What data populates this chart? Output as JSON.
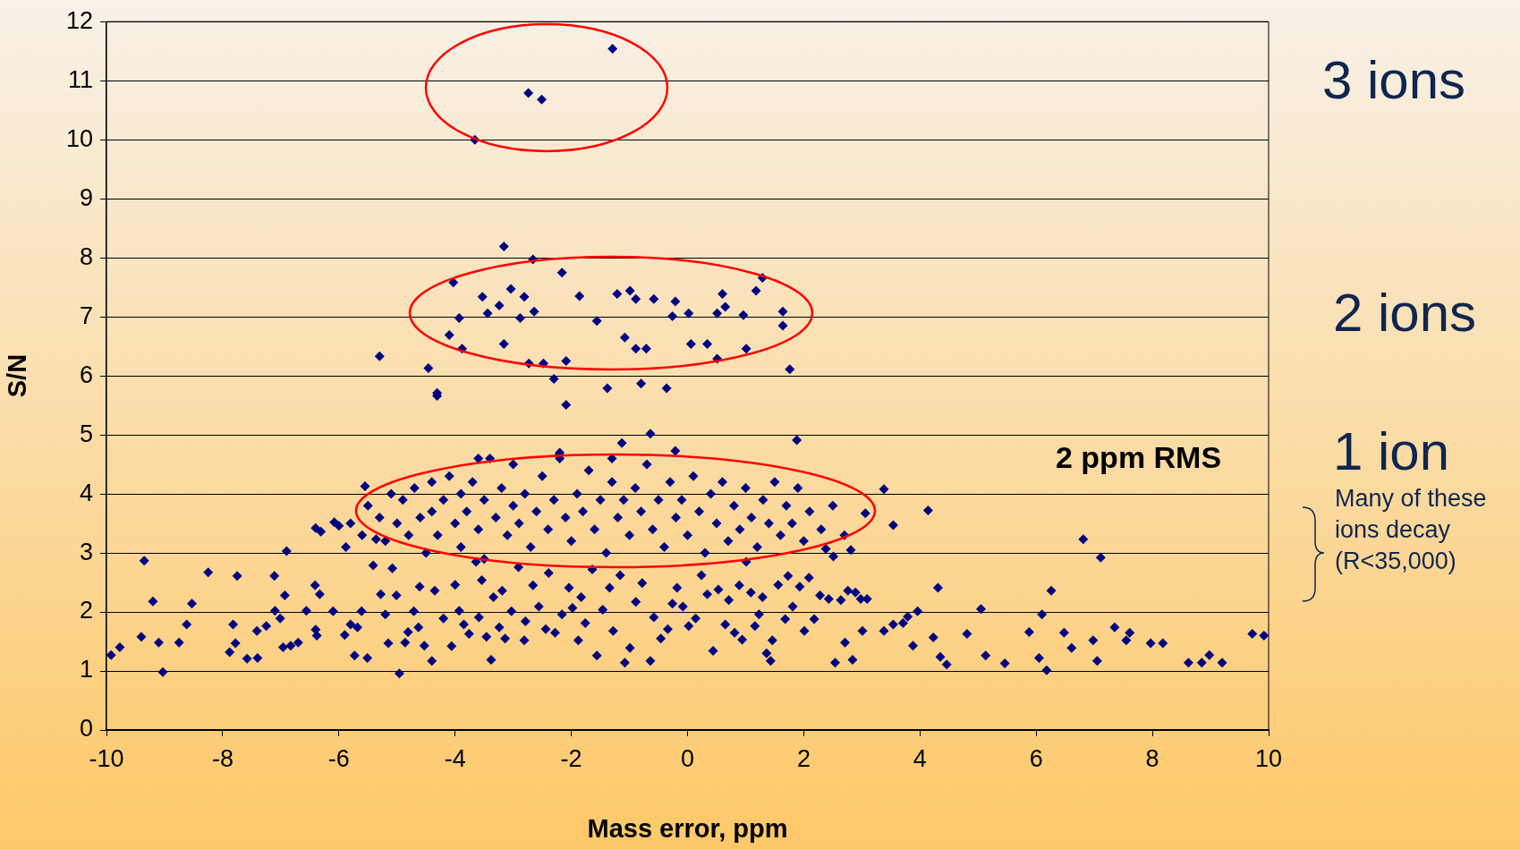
{
  "chart_data": {
    "type": "scatter",
    "xlabel": "Mass error, ppm",
    "ylabel": "S/N",
    "xlim": [
      -10,
      10
    ],
    "xticks": [
      -10,
      -8,
      -6,
      -4,
      -2,
      0,
      2,
      4,
      6,
      8,
      10
    ],
    "ylim": [
      0,
      12
    ],
    "yticks": [
      0,
      1,
      2,
      3,
      4,
      5,
      6,
      7,
      8,
      9,
      10,
      11,
      12
    ],
    "grid": "y",
    "marker": "diamond",
    "legend": false,
    "annotations": [
      "3 ions",
      "2 ions",
      "1 ion",
      "Many of these ions decay (R<35,000)",
      "2 ppm RMS"
    ],
    "series": [
      {
        "color": "#000080",
        "x": [
          -3.66,
          -2.74,
          -2.51,
          -1.29,
          -3.16,
          -2.66,
          -2.16,
          1.29,
          -4.03,
          -3.53,
          -3.04,
          -2.81,
          -2.64,
          -3.93,
          -3.44,
          -3.24,
          -2.88,
          -1.86,
          -1.56,
          -1.21,
          -0.99,
          -0.89,
          -0.58,
          -0.21,
          0.02,
          -0.26,
          0.51,
          0.6,
          0.65,
          0.96,
          1.18,
          1.64,
          1.64,
          -4.1,
          -3.88,
          -3.16,
          -2.73,
          -2.48,
          -2.09,
          -1.08,
          -0.89,
          -0.71,
          0.06,
          0.34,
          0.51,
          1.01,
          -5.3,
          -4.46,
          1.76,
          -2.3,
          -4.31,
          -4.31,
          -1.38,
          -0.8,
          -0.36,
          -2.09,
          -1.13,
          -0.64,
          1.88,
          -0.21,
          -2.21,
          -9.92,
          -9.77,
          -9.35,
          -9.4,
          -9.2,
          -9.1,
          -9.03,
          -8.75,
          -8.62,
          -8.53,
          -8.25,
          -7.88,
          -7.82,
          -7.75,
          -7.78,
          -7.58,
          -7.4,
          -7.41,
          -7.25,
          -7.11,
          -7.1,
          -7.01,
          -6.96,
          -6.93,
          -6.9,
          -6.83,
          -6.7,
          -6.56,
          -6.41,
          -6.4,
          -6.31,
          -6.4,
          -6.38,
          -6.33,
          -6.1,
          -6.08,
          -6.0,
          -5.88,
          -5.9,
          -5.8,
          -5.73,
          -5.68,
          -5.61,
          -5.55,
          -5.51,
          -5.41,
          -5.36,
          -5.28,
          -5.2,
          -5.15,
          -5.08,
          -5.01,
          -4.96,
          -4.86,
          -4.81,
          -4.71,
          -4.63,
          -4.61,
          -4.53,
          -4.4,
          -4.35,
          -4.2,
          -4.06,
          -4.0,
          -3.93,
          -3.85,
          -3.76,
          -3.64,
          -3.59,
          -3.54,
          -3.46,
          -3.38,
          -3.34,
          -3.24,
          -3.19,
          -3.14,
          -3.03,
          -2.91,
          -2.81,
          -2.79,
          -2.66,
          -2.56,
          -2.44,
          -2.39,
          -2.28,
          -2.16,
          -2.04,
          -1.98,
          -1.88,
          -1.83,
          -1.76,
          -1.64,
          -1.56,
          -1.46,
          -1.34,
          -1.28,
          -1.16,
          -1.08,
          -0.99,
          -0.89,
          -0.78,
          -0.64,
          -0.58,
          -0.46,
          -0.34,
          -0.26,
          -0.18,
          -0.08,
          0.02,
          0.14,
          0.24,
          0.34,
          0.44,
          0.53,
          0.65,
          0.71,
          0.81,
          0.89,
          0.94,
          1.01,
          1.09,
          1.16,
          1.23,
          1.29,
          1.36,
          1.43,
          1.46,
          1.56,
          1.68,
          1.73,
          1.81,
          1.93,
          2.01,
          2.09,
          2.18,
          2.28,
          2.38,
          2.43,
          2.51,
          2.54,
          2.64,
          2.71,
          2.76,
          2.81,
          2.84,
          2.89,
          2.98,
          3.01,
          3.06,
          3.09,
          3.38,
          3.38,
          3.54,
          3.54,
          3.71,
          3.79,
          3.88,
          3.96,
          4.14,
          4.23,
          4.31,
          4.35,
          4.46,
          4.81,
          5.05,
          5.13,
          5.46,
          5.88,
          6.1,
          6.05,
          6.18,
          6.26,
          6.48,
          6.61,
          6.81,
          6.98,
          7.05,
          7.11,
          7.35,
          7.55,
          7.61,
          7.97,
          8.18,
          8.62,
          8.85,
          8.98,
          9.2,
          9.72,
          9.92,
          -5.8,
          -5.6,
          -5.5,
          -5.3,
          -5.2,
          -5.1,
          -5.0,
          -4.9,
          -4.8,
          -4.7,
          -4.6,
          -4.5,
          -4.4,
          -4.4,
          -4.3,
          -4.2,
          -4.1,
          -4.0,
          -3.9,
          -3.9,
          -3.8,
          -3.7,
          -3.6,
          -3.5,
          -3.5,
          -3.4,
          -3.3,
          -3.2,
          -3.1,
          -3.0,
          -3.0,
          -2.9,
          -2.8,
          -2.7,
          -2.6,
          -2.5,
          -2.4,
          -2.3,
          -2.2,
          -2.1,
          -2.0,
          -1.9,
          -1.8,
          -1.7,
          -1.6,
          -1.5,
          -1.4,
          -1.3,
          -1.2,
          -1.1,
          -1.0,
          -0.9,
          -0.8,
          -0.7,
          -0.6,
          -0.5,
          -0.4,
          -0.3,
          -0.2,
          -0.1,
          0.0,
          0.1,
          0.2,
          0.3,
          0.4,
          0.5,
          0.6,
          0.7,
          0.8,
          0.9,
          1.0,
          1.1,
          1.2,
          1.3,
          1.4,
          1.5,
          1.6,
          1.7,
          1.8,
          1.9,
          2.0,
          2.1,
          2.3,
          2.5,
          2.7,
          -3.6,
          -2.2,
          -1.3
        ],
        "values": [
          10.0,
          10.79,
          10.68,
          11.54,
          8.19,
          7.97,
          7.75,
          7.66,
          7.58,
          7.34,
          7.47,
          7.34,
          7.09,
          6.98,
          7.06,
          7.19,
          6.98,
          7.35,
          6.93,
          7.39,
          7.44,
          7.3,
          7.3,
          7.26,
          7.06,
          7.01,
          7.06,
          7.39,
          7.17,
          7.03,
          7.44,
          7.09,
          6.85,
          6.69,
          6.46,
          6.54,
          6.21,
          6.21,
          6.25,
          6.65,
          6.46,
          6.46,
          6.54,
          6.54,
          6.29,
          6.46,
          6.33,
          6.13,
          6.11,
          5.95,
          5.71,
          5.66,
          5.79,
          5.87,
          5.79,
          5.51,
          4.86,
          5.02,
          4.91,
          4.73,
          4.66,
          1.27,
          1.4,
          2.87,
          1.58,
          2.18,
          1.48,
          0.98,
          1.48,
          1.79,
          2.14,
          2.67,
          1.32,
          1.79,
          2.61,
          1.47,
          1.21,
          1.22,
          1.68,
          1.76,
          2.61,
          2.02,
          1.89,
          1.4,
          2.28,
          3.03,
          1.43,
          1.48,
          2.02,
          2.45,
          3.42,
          3.36,
          1.7,
          1.6,
          2.3,
          2.01,
          3.52,
          3.46,
          3.1,
          1.61,
          1.79,
          1.26,
          1.74,
          2.01,
          4.13,
          1.22,
          2.79,
          3.23,
          2.3,
          1.96,
          1.47,
          2.74,
          2.28,
          0.96,
          1.48,
          1.66,
          2.01,
          1.74,
          2.43,
          1.43,
          1.17,
          2.36,
          1.89,
          1.42,
          2.46,
          2.02,
          1.79,
          1.63,
          2.85,
          1.91,
          2.54,
          1.58,
          1.19,
          2.25,
          1.74,
          2.36,
          1.55,
          2.01,
          2.76,
          1.52,
          1.84,
          2.45,
          2.09,
          1.71,
          2.66,
          1.65,
          1.96,
          2.41,
          2.07,
          1.52,
          2.25,
          1.81,
          2.72,
          1.26,
          2.04,
          2.41,
          1.68,
          2.62,
          1.14,
          1.39,
          2.17,
          2.49,
          1.17,
          1.91,
          1.55,
          1.71,
          2.14,
          2.41,
          2.09,
          1.76,
          1.89,
          2.62,
          2.3,
          1.34,
          2.38,
          1.79,
          2.2,
          1.65,
          2.45,
          1.53,
          2.85,
          2.33,
          1.76,
          1.96,
          2.25,
          1.3,
          1.17,
          1.52,
          2.46,
          1.88,
          2.61,
          2.09,
          2.43,
          1.68,
          2.58,
          1.88,
          2.28,
          3.07,
          2.22,
          2.94,
          1.14,
          2.2,
          1.48,
          2.36,
          3.05,
          1.19,
          2.33,
          2.22,
          1.68,
          3.67,
          2.22,
          4.08,
          1.68,
          3.47,
          1.79,
          1.81,
          1.92,
          1.43,
          2.01,
          3.72,
          1.57,
          2.41,
          1.24,
          1.11,
          1.63,
          2.05,
          1.26,
          1.13,
          1.66,
          1.96,
          1.22,
          1.01,
          2.36,
          1.65,
          1.39,
          3.23,
          1.52,
          1.17,
          2.92,
          1.74,
          1.52,
          1.65,
          1.47,
          1.47,
          1.14,
          1.14,
          1.27,
          1.14,
          1.63,
          1.6,
          3.5,
          3.3,
          3.8,
          3.6,
          3.2,
          4.0,
          3.5,
          3.9,
          3.3,
          4.1,
          3.6,
          3.0,
          4.2,
          3.7,
          3.3,
          3.9,
          4.3,
          3.5,
          3.1,
          4.0,
          3.7,
          4.2,
          3.4,
          3.9,
          2.9,
          4.6,
          3.6,
          4.1,
          3.3,
          3.8,
          4.5,
          3.5,
          4.0,
          3.1,
          3.7,
          4.3,
          3.4,
          3.9,
          4.6,
          3.6,
          3.2,
          4.0,
          3.7,
          4.4,
          3.4,
          3.9,
          3.0,
          4.2,
          3.6,
          3.9,
          3.3,
          4.1,
          3.7,
          4.5,
          3.4,
          3.9,
          3.1,
          4.2,
          3.6,
          3.9,
          3.3,
          4.3,
          3.7,
          3.0,
          4.0,
          3.5,
          4.2,
          3.2,
          3.8,
          3.4,
          4.1,
          3.6,
          3.1,
          3.9,
          3.5,
          4.2,
          3.3,
          3.8,
          3.5,
          4.1,
          3.2,
          3.7,
          3.4,
          3.8,
          3.3,
          4.6,
          4.7,
          4.6
        ]
      }
    ]
  }
}
